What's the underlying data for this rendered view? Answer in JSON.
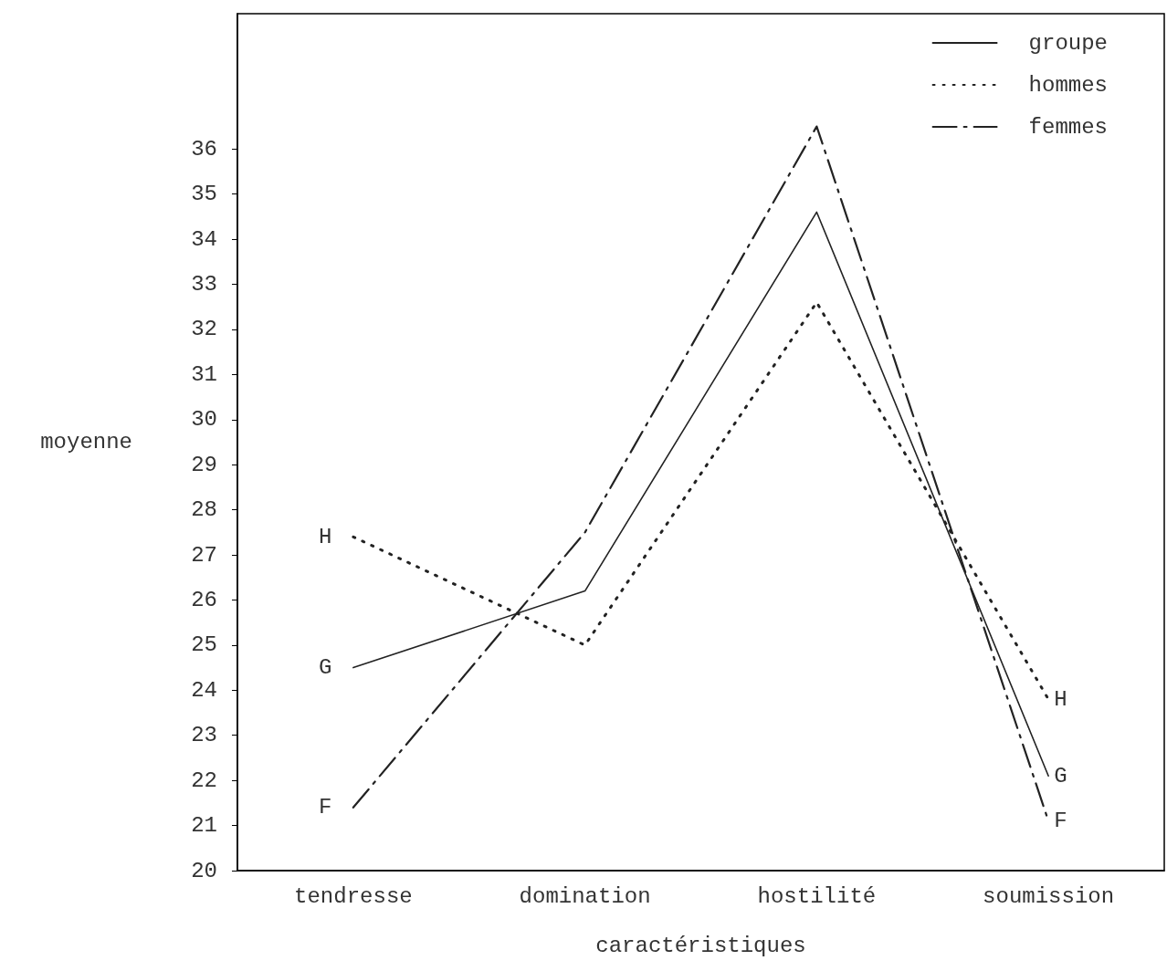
{
  "chart_data": {
    "type": "line",
    "xlabel": "caractéristiques",
    "ylabel": "moyenne",
    "categories": [
      "tendresse",
      "domination",
      "hostilité",
      "soumission"
    ],
    "series": [
      {
        "name": "groupe",
        "color": "#222222",
        "line_style": "solid",
        "values": [
          24.5,
          26.2,
          34.6,
          22.1
        ]
      },
      {
        "name": "hommes",
        "color": "#222222",
        "line_style": "dotted",
        "values": [
          27.4,
          25.0,
          32.6,
          23.8
        ]
      },
      {
        "name": "femmes",
        "color": "#222222",
        "line_style": "dashed",
        "values": [
          21.4,
          27.5,
          36.5,
          21.1
        ]
      }
    ],
    "annotations": [
      {
        "text": "H",
        "x": "tendresse",
        "y": 27.4
      },
      {
        "text": "G",
        "x": "tendresse",
        "y": 24.5
      },
      {
        "text": "F",
        "x": "tendresse",
        "y": 21.4
      },
      {
        "text": "H",
        "x": "soumission",
        "y": 23.8
      },
      {
        "text": "G",
        "x": "soumission",
        "y": 22.1
      },
      {
        "text": "F",
        "x": "soumission",
        "y": 21.1
      }
    ],
    "ylim": [
      20,
      39
    ],
    "yticks": [
      20,
      21,
      22,
      23,
      24,
      25,
      26,
      27,
      28,
      29,
      30,
      31,
      32,
      33,
      34,
      35,
      36
    ],
    "grid": false,
    "legend": "top right",
    "marker": "none"
  }
}
